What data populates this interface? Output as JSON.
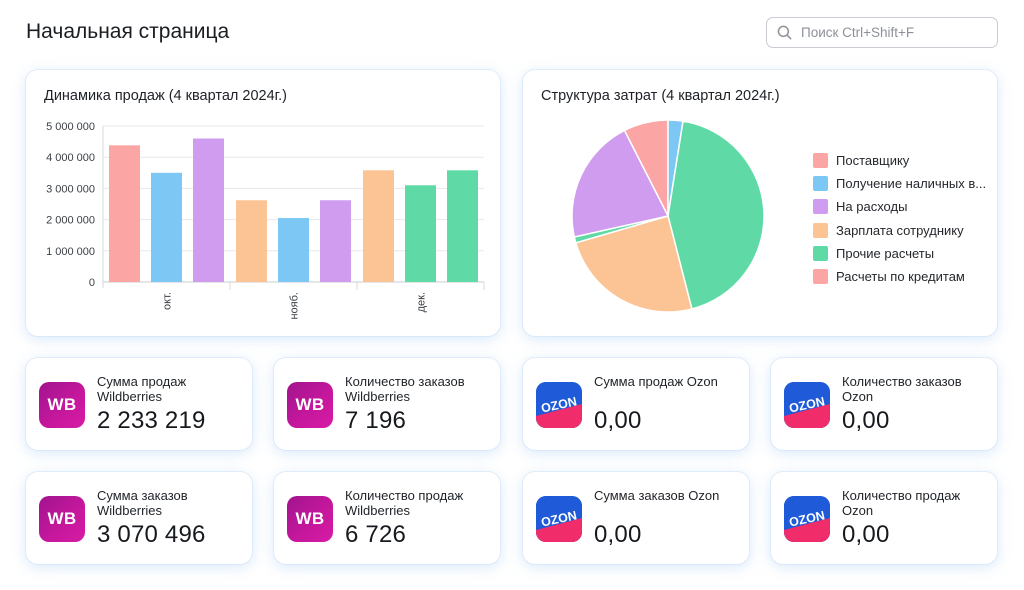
{
  "header": {
    "title": "Начальная страница",
    "search_placeholder": "Поиск Ctrl+Shift+F"
  },
  "sales_chart": {
    "title": "Динамика продаж (4 квартал 2024г.)"
  },
  "costs_chart": {
    "title": "Структура затрат (4 квартал 2024г.)"
  },
  "chart_data": [
    {
      "type": "bar",
      "title": "Динамика продаж (4 квартал 2024г.)",
      "categories": [
        "окт.",
        "нояб.",
        "дек."
      ],
      "ylim": [
        0,
        5000000
      ],
      "yticks": [
        "5 000 000",
        "4 000 000",
        "3 000 000",
        "2 000 000",
        "1 000 000",
        "0"
      ],
      "ytick_values": [
        5000000,
        4000000,
        3000000,
        2000000,
        1000000,
        0
      ],
      "grid": true,
      "groups": [
        {
          "category": "окт.",
          "bars": [
            {
              "value": 4380000,
              "color": "#fca5a5"
            },
            {
              "value": 3500000,
              "color": "#7cc7f4"
            },
            {
              "value": 4600000,
              "color": "#cf9cf0"
            }
          ]
        },
        {
          "category": "нояб.",
          "bars": [
            {
              "value": 2620000,
              "color": "#fcc394"
            },
            {
              "value": 2050000,
              "color": "#7cc7f4"
            },
            {
              "value": 2620000,
              "color": "#cf9cf0"
            }
          ]
        },
        {
          "category": "дек.",
          "bars": [
            {
              "value": 3580000,
              "color": "#fcc394"
            },
            {
              "value": 3100000,
              "color": "#5fdaa6"
            },
            {
              "value": 3580000,
              "color": "#5fdaa6"
            }
          ]
        }
      ]
    },
    {
      "type": "pie",
      "title": "Структура затрат (4 квартал 2024г.)",
      "legend_position": "right",
      "slices": [
        {
          "name": "Поставщику",
          "value": 7.5,
          "color": "#fca5a5"
        },
        {
          "name": "Получение наличных в...",
          "value": 2.5,
          "color": "#7cc7f4"
        },
        {
          "name": "Прочие расчеты",
          "value": 43.5,
          "color": "#5fdaa6"
        },
        {
          "name": "Зарплата сотруднику",
          "value": 24.5,
          "color": "#fcc394"
        },
        {
          "name": "Прочие расчеты",
          "value": 1.0,
          "color": "#5fdaa6"
        },
        {
          "name": "На расходы",
          "value": 21.0,
          "color": "#cf9cf0"
        }
      ],
      "legend": [
        {
          "label": "Поставщику",
          "color": "#fca5a5"
        },
        {
          "label": "Получение наличных в...",
          "color": "#7cc7f4"
        },
        {
          "label": "На расходы",
          "color": "#cf9cf0"
        },
        {
          "label": "Зарплата сотруднику",
          "color": "#fcc394"
        },
        {
          "label": "Прочие расчеты",
          "color": "#5fdaa6"
        },
        {
          "label": "Расчеты по кредитам",
          "color": "#fca5a5"
        }
      ]
    }
  ],
  "stats": [
    {
      "label": "Сумма продаж Wildberries",
      "value": "2 233 219",
      "logo": "wb-logo-icon",
      "logo_text": "WB"
    },
    {
      "label": "Количество заказов Wildberries",
      "value": "7 196",
      "logo": "wb-logo-icon",
      "logo_text": "WB"
    },
    {
      "label": "Сумма продаж Ozon",
      "value": "0,00",
      "logo": "ozon-logo-icon",
      "logo_text": "OZON"
    },
    {
      "label": "Количество заказов Ozon",
      "value": "0,00",
      "logo": "ozon-logo-icon",
      "logo_text": "OZON"
    },
    {
      "label": "Сумма заказов Wildberries",
      "value": "3 070 496",
      "logo": "wb-logo-icon",
      "logo_text": "WB"
    },
    {
      "label": "Количество продаж Wildberries",
      "value": "6 726",
      "logo": "wb-logo-icon",
      "logo_text": "WB"
    },
    {
      "label": "Сумма заказов Ozon",
      "value": "0,00",
      "logo": "ozon-logo-icon",
      "logo_text": "OZON"
    },
    {
      "label": "Количество продаж Ozon",
      "value": "0,00",
      "logo": "ozon-logo-icon",
      "logo_text": "OZON"
    }
  ],
  "colors": {
    "accent_wb": "#b5179a",
    "accent_ozon": "#1f5bd8",
    "ozon_pink": "#f02c6a"
  }
}
